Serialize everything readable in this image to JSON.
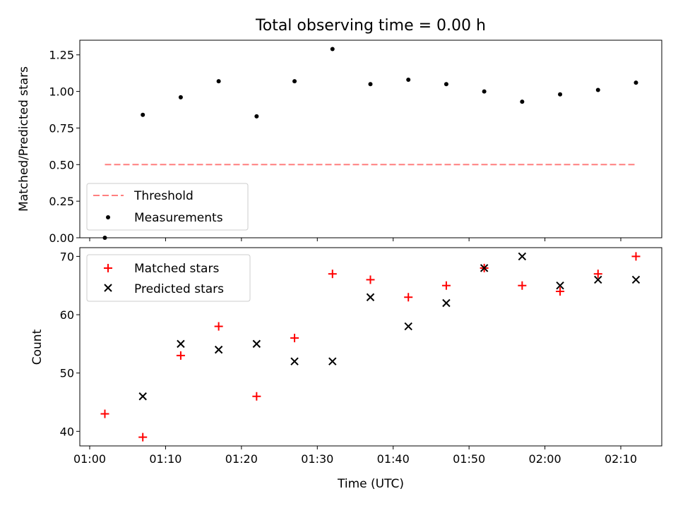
{
  "chart_data": [
    {
      "type": "scatter",
      "title": "Total observing time = 0.00 h",
      "xlabel": "",
      "ylabel": "Matched/Predicted stars",
      "xlim": [
        "01:00",
        "02:15"
      ],
      "ylim": [
        0,
        1.35
      ],
      "yticks": [
        "0.00",
        "0.25",
        "0.50",
        "0.75",
        "1.00",
        "1.25"
      ],
      "legend_location": "lower-left",
      "threshold": {
        "name": "Threshold",
        "y": 0.5,
        "x_start": "01:02",
        "x_end": "02:12",
        "color": "#ff7f7f",
        "style": "dashed"
      },
      "series": [
        {
          "name": "Measurements",
          "marker": "dot",
          "color": "#000000",
          "x": [
            "01:02",
            "01:07",
            "01:12",
            "01:17",
            "01:22",
            "01:27",
            "01:32",
            "01:37",
            "01:42",
            "01:47",
            "01:52",
            "01:57",
            "02:02",
            "02:07",
            "02:12"
          ],
          "y": [
            0.0,
            0.84,
            0.96,
            1.07,
            0.83,
            1.07,
            1.29,
            1.05,
            1.08,
            1.05,
            1.0,
            0.93,
            0.98,
            1.01,
            1.06
          ]
        }
      ]
    },
    {
      "type": "scatter",
      "title": "",
      "xlabel": "Time (UTC)",
      "ylabel": "Count",
      "xlim": [
        "01:00",
        "02:15"
      ],
      "ylim": [
        37.5,
        71.5
      ],
      "xticks": [
        "01:00",
        "01:10",
        "01:20",
        "01:30",
        "01:40",
        "01:50",
        "02:00",
        "02:10"
      ],
      "yticks": [
        "40",
        "50",
        "60",
        "70"
      ],
      "legend_location": "upper-left",
      "series": [
        {
          "name": "Matched stars",
          "marker": "plus",
          "color": "#ff0000",
          "x": [
            "01:02",
            "01:07",
            "01:12",
            "01:17",
            "01:22",
            "01:27",
            "01:32",
            "01:37",
            "01:42",
            "01:47",
            "01:52",
            "01:57",
            "02:02",
            "02:07",
            "02:12"
          ],
          "y": [
            43,
            39,
            53,
            58,
            46,
            56,
            67,
            66,
            63,
            65,
            68,
            65,
            64,
            67,
            70
          ]
        },
        {
          "name": "Predicted stars",
          "marker": "x",
          "color": "#000000",
          "x": [
            "01:02",
            "01:07",
            "01:12",
            "01:17",
            "01:22",
            "01:27",
            "01:32",
            "01:37",
            "01:42",
            "01:47",
            "01:52",
            "01:57",
            "02:02",
            "02:07",
            "02:12"
          ],
          "y": [
            null,
            46,
            55,
            54,
            55,
            52,
            52,
            63,
            58,
            62,
            68,
            70,
            65,
            66,
            66
          ]
        }
      ]
    }
  ]
}
